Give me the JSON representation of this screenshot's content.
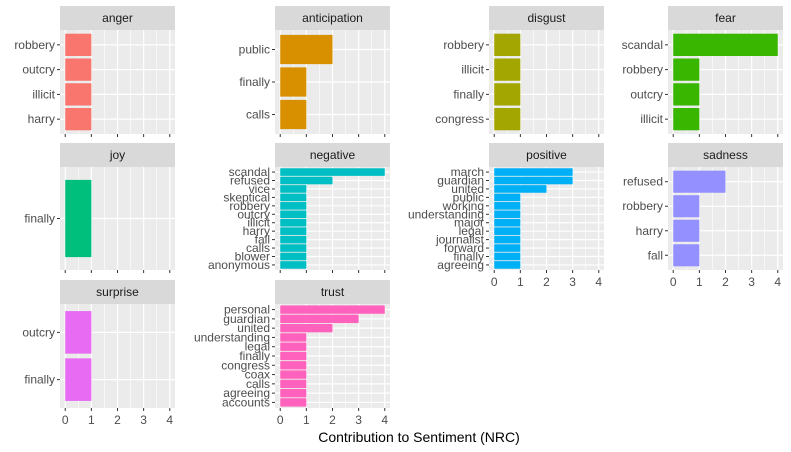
{
  "chart_data": {
    "type": "bar",
    "orientation": "horizontal",
    "xlabel": "Contribution to Sentiment (NRC)",
    "xlim": [
      0,
      4
    ],
    "xticks": [
      0,
      1,
      2,
      3,
      4
    ],
    "grid": true,
    "legend": "none",
    "facets": [
      {
        "name": "anger",
        "color": "#F8766D",
        "categories": [
          "robbery",
          "outcry",
          "illicit",
          "harry"
        ],
        "values": [
          1,
          1,
          1,
          1
        ]
      },
      {
        "name": "anticipation",
        "color": "#D89000",
        "categories": [
          "public",
          "finally",
          "calls"
        ],
        "values": [
          2,
          1,
          1
        ]
      },
      {
        "name": "disgust",
        "color": "#A3A500",
        "categories": [
          "robbery",
          "illicit",
          "finally",
          "congress"
        ],
        "values": [
          1,
          1,
          1,
          1
        ]
      },
      {
        "name": "fear",
        "color": "#39B600",
        "categories": [
          "scandal",
          "robbery",
          "outcry",
          "illicit"
        ],
        "values": [
          4,
          1,
          1,
          1
        ]
      },
      {
        "name": "joy",
        "color": "#00BF7D",
        "categories": [
          "finally"
        ],
        "values": [
          1
        ]
      },
      {
        "name": "negative",
        "color": "#00BFC4",
        "categories": [
          "scandal",
          "refused",
          "vice",
          "skeptical",
          "robbery",
          "outcry",
          "illicit",
          "harry",
          "fall",
          "calls",
          "blower",
          "anonymous"
        ],
        "values": [
          4,
          2,
          1,
          1,
          1,
          1,
          1,
          1,
          1,
          1,
          1,
          1
        ]
      },
      {
        "name": "positive",
        "color": "#00B0F6",
        "categories": [
          "march",
          "guardian",
          "united",
          "public",
          "working",
          "understanding",
          "major",
          "legal",
          "journalist",
          "forward",
          "finally",
          "agreeing"
        ],
        "values": [
          3,
          3,
          2,
          1,
          1,
          1,
          1,
          1,
          1,
          1,
          1,
          1
        ]
      },
      {
        "name": "sadness",
        "color": "#9590FF",
        "categories": [
          "refused",
          "robbery",
          "harry",
          "fall"
        ],
        "values": [
          2,
          1,
          1,
          1
        ]
      },
      {
        "name": "surprise",
        "color": "#E76BF3",
        "categories": [
          "outcry",
          "finally"
        ],
        "values": [
          1,
          1
        ]
      },
      {
        "name": "trust",
        "color": "#FF62BC",
        "categories": [
          "personal",
          "guardian",
          "united",
          "understanding",
          "legal",
          "finally",
          "congress",
          "coax",
          "calls",
          "agreeing",
          "accounts"
        ],
        "values": [
          4,
          3,
          2,
          1,
          1,
          1,
          1,
          1,
          1,
          1,
          1
        ]
      }
    ]
  }
}
